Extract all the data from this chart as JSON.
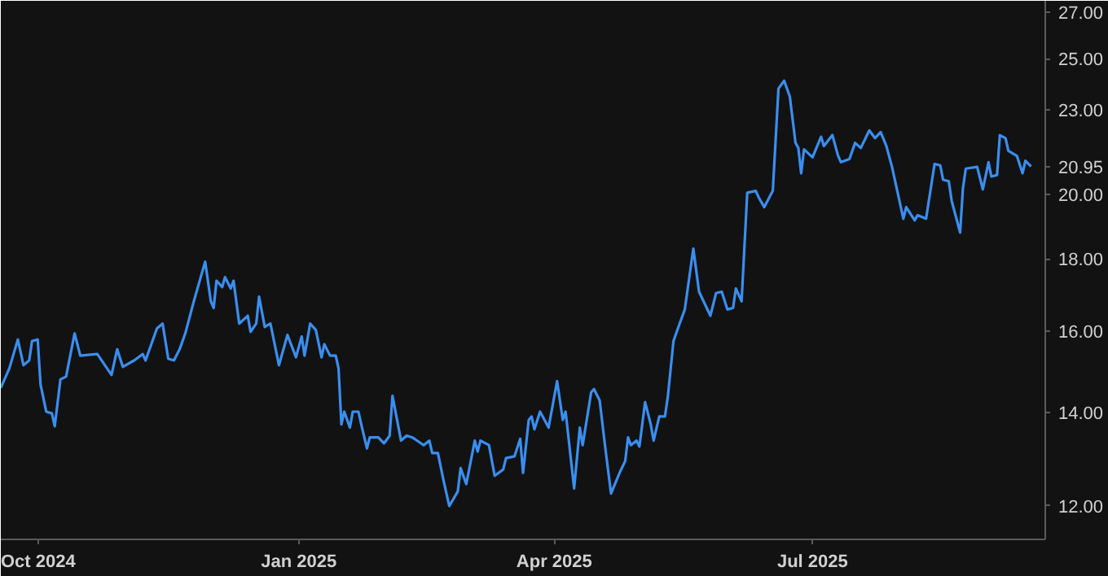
{
  "chart_data": {
    "type": "line",
    "log": true,
    "grid": false,
    "xlim": [
      "2024-09-18",
      "2025-09-21"
    ],
    "ylim": [
      11.36,
      27.5
    ],
    "xticks": [
      {
        "value": "2024-10-01",
        "label": "Oct 2024"
      },
      {
        "value": "2025-01-01",
        "label": "Jan 2025"
      },
      {
        "value": "2025-04-01",
        "label": "Apr 2025"
      },
      {
        "value": "2025-07-01",
        "label": "Jul 2025"
      }
    ],
    "yticks": [
      {
        "value": 12,
        "label": "12.00"
      },
      {
        "value": 14,
        "label": "14.00"
      },
      {
        "value": 16,
        "label": "16.00"
      },
      {
        "value": 18,
        "label": "18.00"
      },
      {
        "value": 20,
        "label": "20.00"
      },
      {
        "value": 20.95,
        "label": "20.95"
      },
      {
        "value": 23,
        "label": "23.00"
      },
      {
        "value": 25,
        "label": "25.00"
      },
      {
        "value": 27,
        "label": "27.00"
      }
    ],
    "series": [
      {
        "color": "#3a8ef0",
        "x": [
          "2024-09-18",
          "2024-09-21",
          "2024-09-24",
          "2024-09-26",
          "2024-09-28",
          "2024-09-29",
          "2024-10-01",
          "2024-10-02",
          "2024-10-04",
          "2024-10-06",
          "2024-10-07",
          "2024-10-09",
          "2024-10-11",
          "2024-10-14",
          "2024-10-16",
          "2024-10-22",
          "2024-10-27",
          "2024-10-29",
          "2024-10-31",
          "2024-11-04",
          "2024-11-07",
          "2024-11-08",
          "2024-11-12",
          "2024-11-14",
          "2024-11-16",
          "2024-11-18",
          "2024-11-20",
          "2024-11-22",
          "2024-11-25",
          "2024-11-29",
          "2024-12-01",
          "2024-12-02",
          "2024-12-03",
          "2024-12-05",
          "2024-12-06",
          "2024-12-08",
          "2024-12-09",
          "2024-12-11",
          "2024-12-14",
          "2024-12-15",
          "2024-12-17",
          "2024-12-18",
          "2024-12-20",
          "2024-12-22",
          "2024-12-25",
          "2024-12-28",
          "2024-12-31",
          "2025-01-02",
          "2025-01-03",
          "2025-01-05",
          "2025-01-07",
          "2025-01-09",
          "2025-01-10",
          "2025-01-12",
          "2025-01-14",
          "2025-01-15",
          "2025-01-16",
          "2025-01-17",
          "2025-01-19",
          "2025-01-20",
          "2025-01-22",
          "2025-01-23",
          "2025-01-25",
          "2025-01-26",
          "2025-01-29",
          "2025-01-31",
          "2025-02-02",
          "2025-02-03",
          "2025-02-06",
          "2025-02-08",
          "2025-02-10",
          "2025-02-14",
          "2025-02-16",
          "2025-02-17",
          "2025-02-19",
          "2025-02-21",
          "2025-02-23",
          "2025-02-26",
          "2025-02-27",
          "2025-03-01",
          "2025-03-04",
          "2025-03-05",
          "2025-03-06",
          "2025-03-09",
          "2025-03-11",
          "2025-03-14",
          "2025-03-15",
          "2025-03-18",
          "2025-03-20",
          "2025-03-21",
          "2025-03-23",
          "2025-03-24",
          "2025-03-25",
          "2025-03-27",
          "2025-03-30",
          "2025-04-02",
          "2025-04-04",
          "2025-04-05",
          "2025-04-08",
          "2025-04-10",
          "2025-04-11",
          "2025-04-14",
          "2025-04-15",
          "2025-04-17",
          "2025-04-19",
          "2025-04-21",
          "2025-04-24",
          "2025-04-26",
          "2025-04-27",
          "2025-04-28",
          "2025-04-30",
          "2025-05-01",
          "2025-05-03",
          "2025-05-05",
          "2025-05-06",
          "2025-05-08",
          "2025-05-10",
          "2025-05-11",
          "2025-05-13",
          "2025-05-15",
          "2025-05-17",
          "2025-05-20",
          "2025-05-22",
          "2025-05-26",
          "2025-05-28",
          "2025-05-30",
          "2025-06-01",
          "2025-06-03",
          "2025-06-04",
          "2025-06-06",
          "2025-06-08",
          "2025-06-11",
          "2025-06-12",
          "2025-06-14",
          "2025-06-17",
          "2025-06-19",
          "2025-06-21",
          "2025-06-23",
          "2025-06-25",
          "2025-06-26",
          "2025-06-27",
          "2025-06-28",
          "2025-07-01",
          "2025-07-04",
          "2025-07-05",
          "2025-07-08",
          "2025-07-10",
          "2025-07-11",
          "2025-07-14",
          "2025-07-16",
          "2025-07-18",
          "2025-07-21",
          "2025-07-23",
          "2025-07-25",
          "2025-07-27",
          "2025-07-29",
          "2025-08-02",
          "2025-08-03",
          "2025-08-06",
          "2025-08-07",
          "2025-08-10",
          "2025-08-13",
          "2025-08-15",
          "2025-08-16",
          "2025-08-18",
          "2025-08-19",
          "2025-08-22",
          "2025-08-23",
          "2025-08-24",
          "2025-08-28",
          "2025-08-30",
          "2025-09-01",
          "2025-09-02",
          "2025-09-04",
          "2025-09-05",
          "2025-09-07",
          "2025-09-08",
          "2025-09-11",
          "2025-09-13",
          "2025-09-14",
          "2025-09-16"
        ],
        "values": [
          14.57,
          15.04,
          15.77,
          15.12,
          15.24,
          15.73,
          15.77,
          14.65,
          14.01,
          13.97,
          13.68,
          14.77,
          14.84,
          15.93,
          15.36,
          15.4,
          14.88,
          15.52,
          15.08,
          15.24,
          15.4,
          15.24,
          16.06,
          16.19,
          15.28,
          15.24,
          15.52,
          15.93,
          16.79,
          17.92,
          16.79,
          16.61,
          17.37,
          17.19,
          17.47,
          17.15,
          17.37,
          16.19,
          16.4,
          15.97,
          16.19,
          16.92,
          16.1,
          16.19,
          15.12,
          15.89,
          15.32,
          15.85,
          15.36,
          16.19,
          16.02,
          15.32,
          15.65,
          15.36,
          15.36,
          15.04,
          13.72,
          14.01,
          13.65,
          14.01,
          14.01,
          13.72,
          13.19,
          13.43,
          13.43,
          13.3,
          13.47,
          14.38,
          13.36,
          13.47,
          13.43,
          13.26,
          13.36,
          13.09,
          13.09,
          12.51,
          12.0,
          12.29,
          12.77,
          12.44,
          13.36,
          13.12,
          13.36,
          13.26,
          12.61,
          12.74,
          12.98,
          13.02,
          13.4,
          12.67,
          13.82,
          13.9,
          13.61,
          14.01,
          13.65,
          14.73,
          13.82,
          14.01,
          12.35,
          13.65,
          13.26,
          14.46,
          14.54,
          14.27,
          13.19,
          12.25,
          12.67,
          12.92,
          13.43,
          13.26,
          13.36,
          13.23,
          14.23,
          13.72,
          13.36,
          13.9,
          13.9,
          14.35,
          15.73,
          16.15,
          16.57,
          18.31,
          17.06,
          16.4,
          17.02,
          17.06,
          16.57,
          16.61,
          17.15,
          16.79,
          20.07,
          20.13,
          19.92,
          19.6,
          20.13,
          23.81,
          24.12,
          23.5,
          21.78,
          21.6,
          20.72,
          21.55,
          21.27,
          22.0,
          21.67,
          22.06,
          21.32,
          21.1,
          21.21,
          21.78,
          21.6,
          22.23,
          21.95,
          22.17,
          21.67,
          20.94,
          19.23,
          19.6,
          19.18,
          19.34,
          19.23,
          21.04,
          20.99,
          20.5,
          20.45,
          19.81,
          18.8,
          20.23,
          20.88,
          20.94,
          20.18,
          21.1,
          20.61,
          20.66,
          22.06,
          21.95,
          21.5,
          21.32,
          20.72,
          21.15,
          20.95
        ]
      }
    ]
  }
}
